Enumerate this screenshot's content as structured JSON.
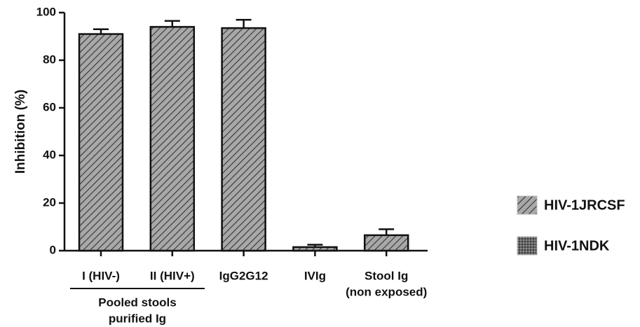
{
  "chart_data": {
    "type": "bar",
    "ylabel": "Inhibition (%)",
    "categories": [
      [
        "I (HIV-)"
      ],
      [
        "II (HIV+)"
      ],
      [
        "IgG2G12"
      ],
      [
        "IVIg"
      ],
      [
        "Stool Ig",
        "(non exposed)"
      ]
    ],
    "series": [
      {
        "name": "HIV-1JRCSF",
        "color": "#9a9a9a",
        "pattern": "hatch",
        "values": [
          91,
          94,
          93.5,
          1.5,
          6.5
        ],
        "errors": [
          2,
          2.5,
          3.5,
          1,
          2.5
        ]
      },
      {
        "name": "HIV-1NDK",
        "color": "#555555",
        "pattern": "dots",
        "values": [
          null,
          null,
          null,
          null,
          null
        ],
        "errors": [
          null,
          null,
          null,
          null,
          null
        ]
      }
    ],
    "group_label": [
      "Pooled stools",
      "purified Ig"
    ],
    "ylim": [
      0,
      100
    ],
    "yticks": [
      0,
      20,
      40,
      60,
      80,
      100
    ],
    "grid": false
  }
}
